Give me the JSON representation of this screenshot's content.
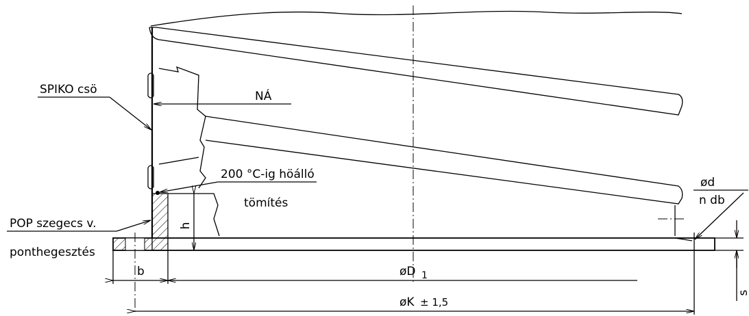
{
  "labels": {
    "spiko": "SPIKO csö",
    "na": "NÁ",
    "temp": "200 °C-ig höálló",
    "seal": "tömítés",
    "pop": "POP szegecs v.",
    "weld": "ponthegesztés",
    "h": "h",
    "b": "b",
    "d1": "øD",
    "d1_sub": "1",
    "k": "øK",
    "k_tol": "± 1,5",
    "d": "ød",
    "n": "n db",
    "s": "s"
  }
}
